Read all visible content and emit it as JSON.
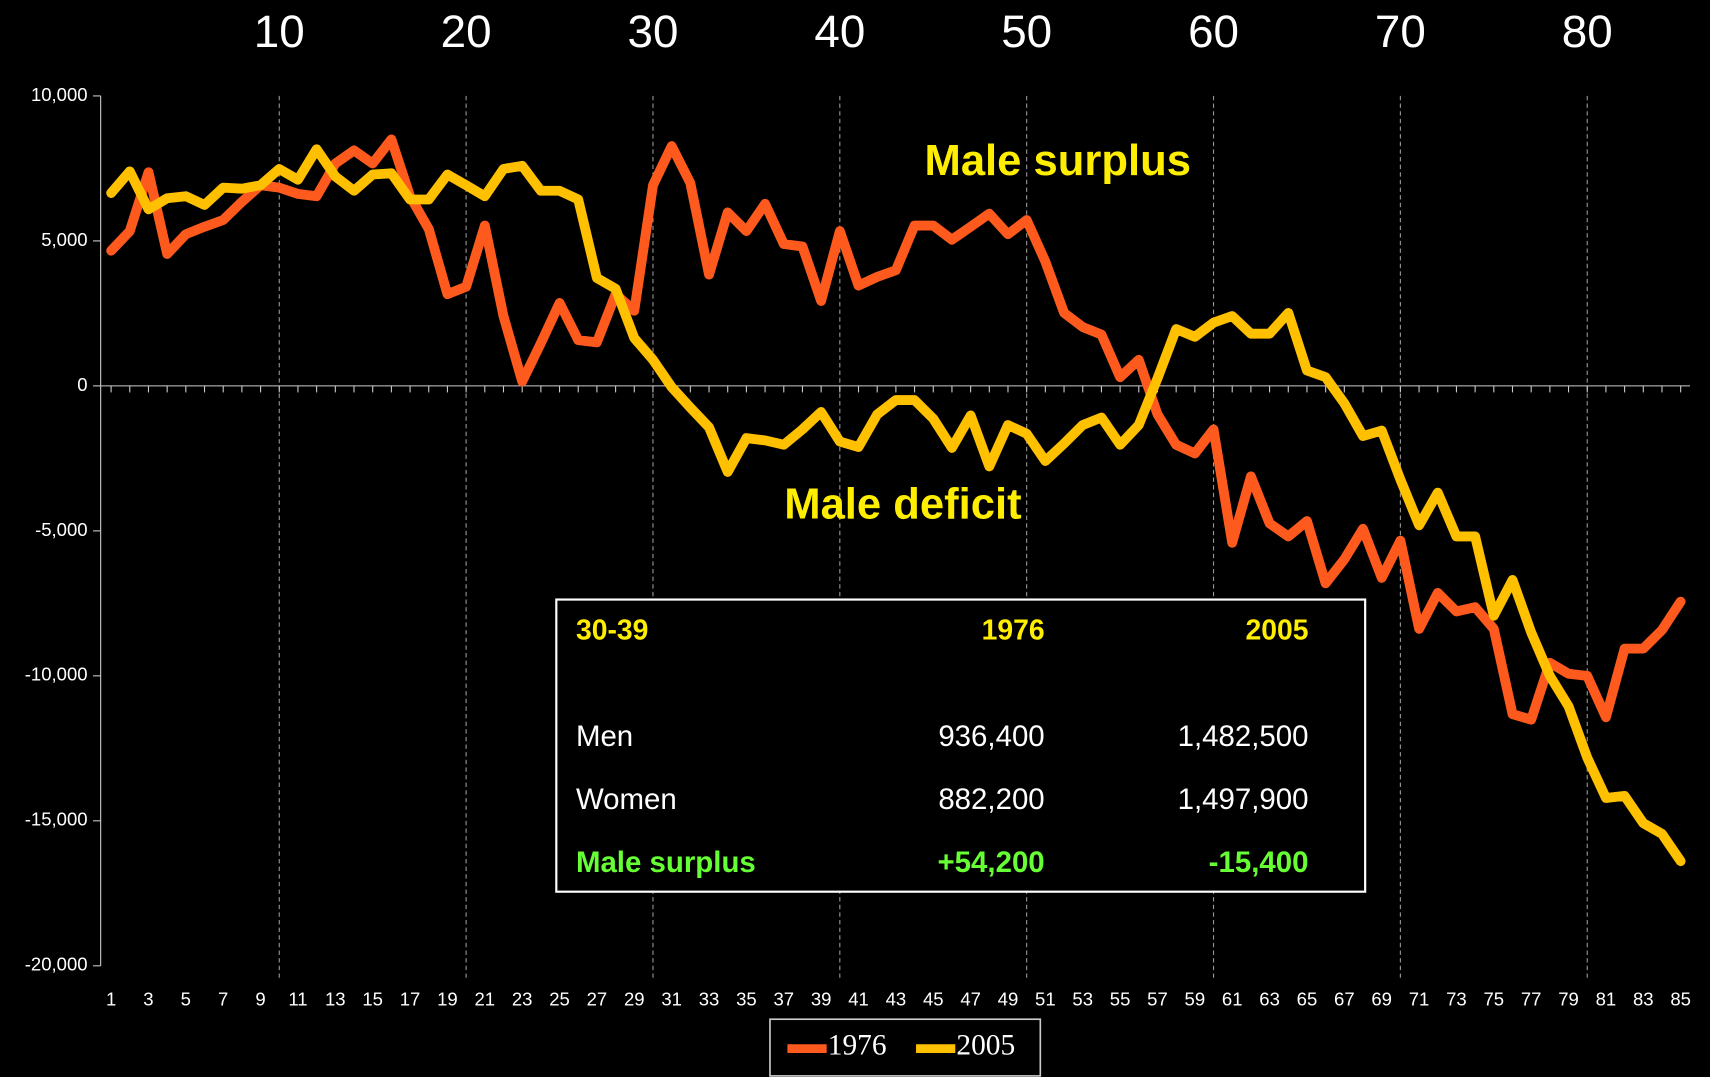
{
  "chart_data": {
    "type": "line",
    "x": [
      1,
      2,
      3,
      4,
      5,
      6,
      7,
      8,
      9,
      10,
      11,
      12,
      13,
      14,
      15,
      16,
      17,
      18,
      19,
      20,
      21,
      22,
      23,
      24,
      25,
      26,
      27,
      28,
      29,
      30,
      31,
      32,
      33,
      34,
      35,
      36,
      37,
      38,
      39,
      40,
      41,
      42,
      43,
      44,
      45,
      46,
      47,
      48,
      49,
      50,
      51,
      52,
      53,
      54,
      55,
      56,
      57,
      58,
      59,
      60,
      61,
      62,
      63,
      64,
      65,
      66,
      67,
      68,
      69,
      70,
      71,
      72,
      73,
      74,
      75,
      76,
      77,
      78,
      79,
      80,
      81,
      82,
      83,
      84,
      85
    ],
    "series": [
      {
        "name": "1976",
        "color": "#ff5a1e",
        "values": [
          4660,
          5340,
          7370,
          4550,
          5230,
          5490,
          5720,
          6350,
          6920,
          6840,
          6620,
          6540,
          7670,
          8120,
          7670,
          8500,
          6540,
          5410,
          3160,
          3420,
          5530,
          2410,
          150,
          1470,
          2860,
          1580,
          1500,
          3160,
          2590,
          6920,
          8270,
          7000,
          3840,
          5980,
          5340,
          6280,
          4890,
          4810,
          2930,
          5340,
          3460,
          3760,
          3990,
          5530,
          5530,
          5040,
          5490,
          5940,
          5230,
          5720,
          4290,
          2520,
          2030,
          1770,
          300,
          900,
          -980,
          -2030,
          -2330,
          -1500,
          -5410,
          -3120,
          -4740,
          -5190,
          -4660,
          -6810,
          -5980,
          -4930,
          -6620,
          -5340,
          -8380,
          -7140,
          -7780,
          -7630,
          -8380,
          -11320,
          -11510,
          -9550,
          -9930,
          -10000,
          -11430,
          -9060,
          -9060,
          -8420,
          -7440
        ]
      },
      {
        "name": "2005",
        "color": "#ffc000",
        "values": [
          6650,
          7400,
          6090,
          6470,
          6540,
          6240,
          6840,
          6800,
          6920,
          7480,
          7110,
          8160,
          7220,
          6730,
          7290,
          7330,
          6430,
          6430,
          7290,
          6920,
          6540,
          7480,
          7590,
          6730,
          6730,
          6430,
          3720,
          3350,
          1650,
          900,
          -40,
          -750,
          -1430,
          -2970,
          -1800,
          -1880,
          -2030,
          -1500,
          -900,
          -1920,
          -2110,
          -980,
          -490,
          -490,
          -1130,
          -2140,
          -1020,
          -2780,
          -1350,
          -1650,
          -2590,
          -1990,
          -1350,
          -1090,
          -2030,
          -1350,
          260,
          1960,
          1690,
          2180,
          2410,
          1800,
          1800,
          2520,
          530,
          300,
          -600,
          -1730,
          -1540,
          -3230,
          -4810,
          -3680,
          -5190,
          -5190,
          -7930,
          -6690,
          -8500,
          -10000,
          -11050,
          -12820,
          -14210,
          -14140,
          -15080,
          -15450,
          -16390
        ]
      }
    ],
    "xlim": [
      0.5,
      85.5
    ],
    "xticks": [
      1,
      3,
      5,
      7,
      9,
      11,
      13,
      15,
      17,
      19,
      21,
      23,
      25,
      27,
      29,
      31,
      33,
      35,
      37,
      39,
      41,
      43,
      45,
      47,
      49,
      51,
      53,
      55,
      57,
      59,
      61,
      63,
      65,
      67,
      69,
      71,
      73,
      75,
      77,
      79,
      81,
      83,
      85
    ],
    "top_ticks": [
      10,
      20,
      30,
      40,
      50,
      60,
      70,
      80
    ],
    "ylim": [
      -20000,
      10000
    ],
    "yticks": [
      {
        "value": 10000,
        "label": "10,000"
      },
      {
        "value": 5000,
        "label": "5,000"
      },
      0,
      {
        "value": -5000,
        "label": "-5,000"
      },
      {
        "value": -10000,
        "label": "-10,000"
      },
      {
        "value": -15000,
        "label": "-15,000"
      },
      {
        "value": -20000,
        "label": "-20,000"
      }
    ],
    "annotations": [
      "Male surplus",
      "Male deficit"
    ],
    "legend": "bottom",
    "table": {
      "header": [
        "30-39",
        "1976",
        "2005"
      ],
      "rows": [
        [
          "Men",
          "936,400",
          "1,482,500"
        ],
        [
          "Women",
          "882,200",
          "1,497,900"
        ],
        [
          "Male surplus",
          "+54,200",
          "-15,400"
        ]
      ]
    }
  }
}
